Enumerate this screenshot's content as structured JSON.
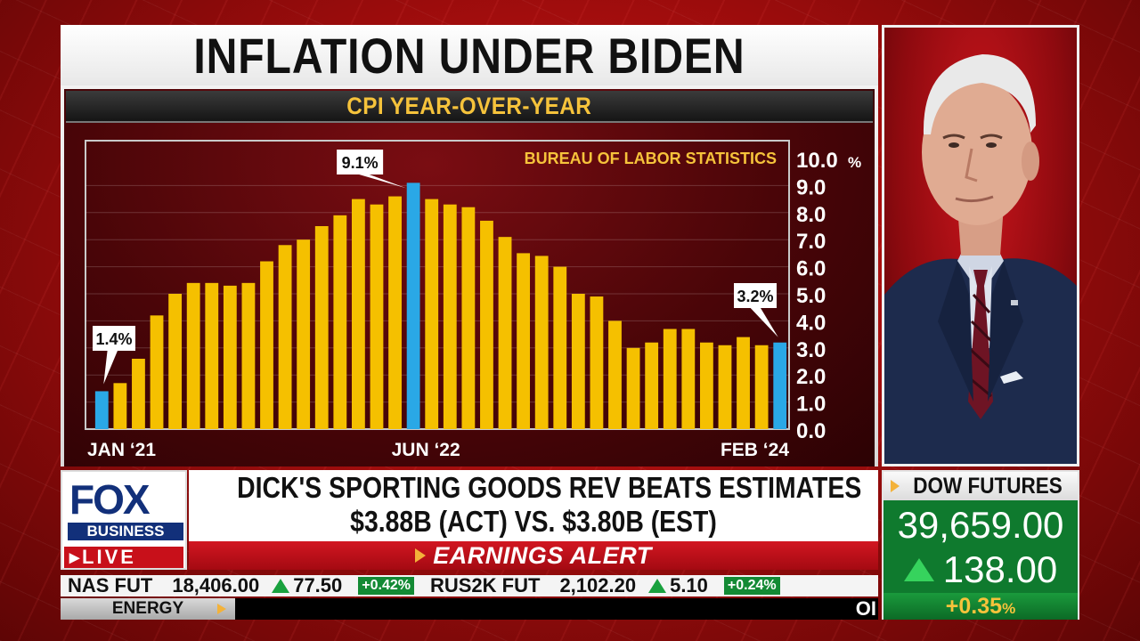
{
  "headline": {
    "title": "INFLATION UNDER BIDEN"
  },
  "chart_data": {
    "type": "bar",
    "title": "CPI YEAR-OVER-YEAR",
    "source": "BUREAU OF LABOR STATISTICS",
    "ylim": [
      0,
      10
    ],
    "y_ticks": [
      "0.0",
      "1.0",
      "2.0",
      "3.0",
      "4.0",
      "5.0",
      "6.0",
      "7.0",
      "8.0",
      "9.0",
      "10.0"
    ],
    "y_unit": "%",
    "x_labels": [
      "JAN ‘21",
      "JUN ‘22",
      "FEB ‘24"
    ],
    "callouts": {
      "first": "1.4%",
      "peak": "9.1%",
      "last": "3.2%"
    },
    "highlight_color": "#2aa8e6",
    "bar_color": "#f5c000",
    "values": [
      1.4,
      1.7,
      2.6,
      4.2,
      5.0,
      5.4,
      5.4,
      5.3,
      5.4,
      6.2,
      6.8,
      7.0,
      7.5,
      7.9,
      8.5,
      8.3,
      8.6,
      9.1,
      8.5,
      8.3,
      8.2,
      7.7,
      7.1,
      6.5,
      6.4,
      6.0,
      5.0,
      4.9,
      4.0,
      3.0,
      3.2,
      3.7,
      3.7,
      3.2,
      3.1,
      3.4,
      3.1,
      3.2
    ],
    "highlighted_indices": [
      0,
      17,
      37
    ]
  },
  "photo": {
    "subject": "speaker-portrait"
  },
  "logo": {
    "fox": "FOX",
    "business": "BUSINESS",
    "live": "LIVE"
  },
  "lower_third": {
    "line1": "DICK'S SPORTING GOODS REV BEATS ESTIMATES",
    "line2": "$3.88B (ACT) VS. $3.80B (EST)",
    "alert": "EARNINGS ALERT"
  },
  "ticker": {
    "items": [
      {
        "name": "NAS FUT",
        "value": "18,406.00",
        "change": "77.50",
        "pct": "+0.42%"
      },
      {
        "name": "RUS2K FUT",
        "value": "2,102.20",
        "change": "5.10",
        "pct": "+0.24%"
      }
    ],
    "sector": "ENERGY",
    "scroll_text": "OI"
  },
  "dow": {
    "title": "DOW FUTURES",
    "value": "39,659.00",
    "change": "138.00",
    "pct": "+0.35",
    "pct_unit": "%"
  }
}
